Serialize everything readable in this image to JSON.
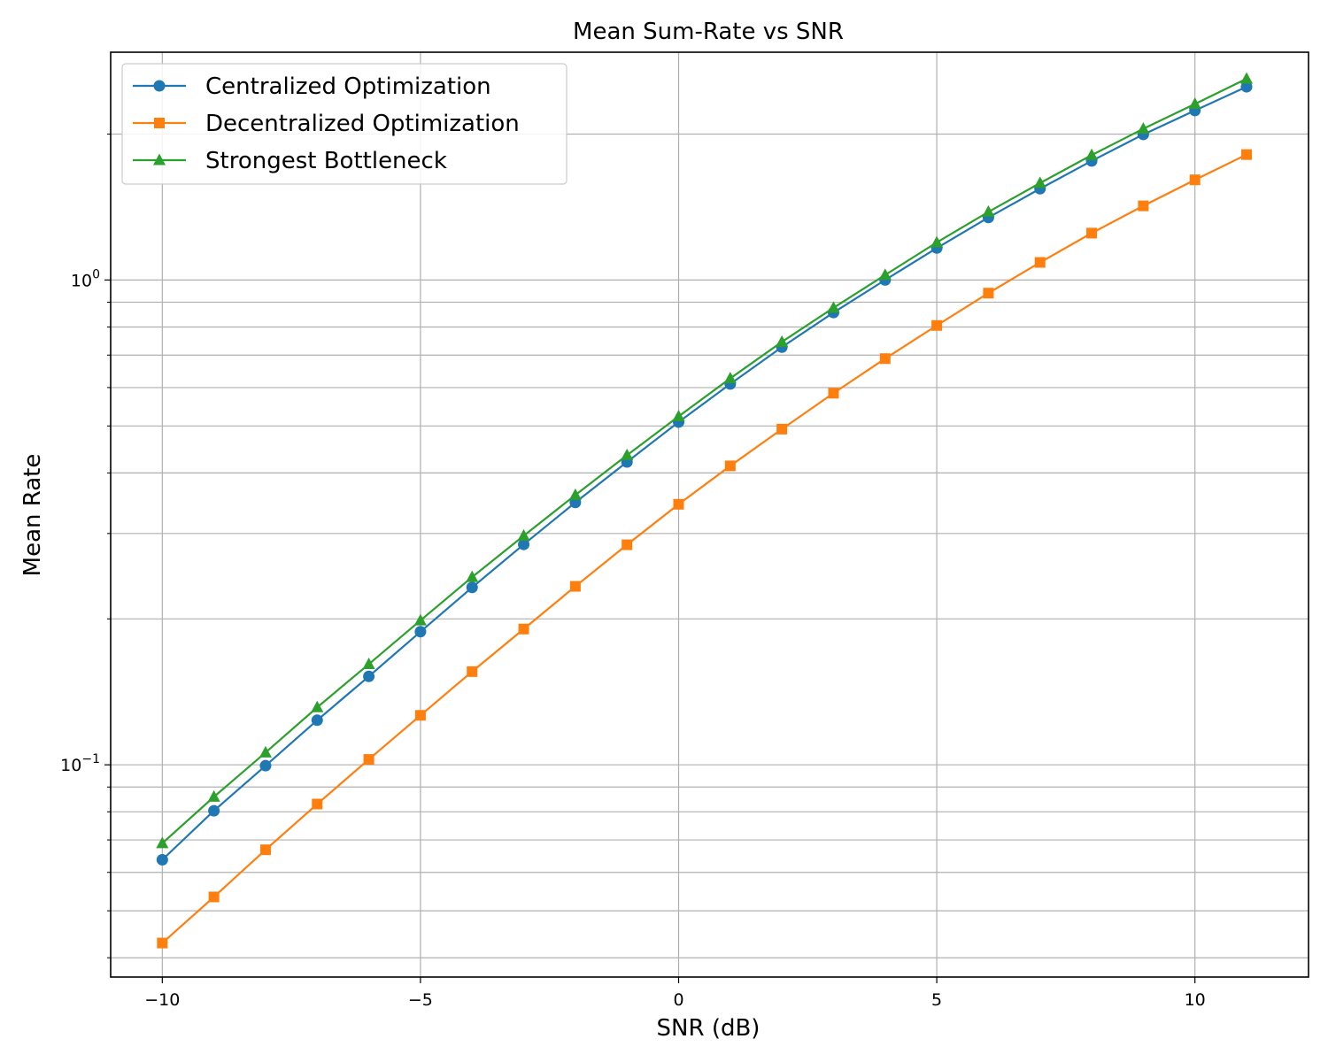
{
  "chart_data": {
    "type": "line",
    "title": "Mean Sum-Rate vs SNR",
    "xlabel": "SNR (dB)",
    "ylabel": "Mean Rate",
    "yscale": "log",
    "xlim": [
      -11.0,
      12.2
    ],
    "ylim": [
      0.0365,
      2.95
    ],
    "grid": "major and minor",
    "legend_position": "top-left",
    "x": [
      -10,
      -9,
      -8,
      -7,
      -6,
      -5,
      -4,
      -3,
      -2,
      -1,
      0,
      1,
      2,
      3,
      4,
      5,
      6,
      7,
      8,
      9,
      10,
      11
    ],
    "x_ticks": [
      {
        "value": -10,
        "label": "−10"
      },
      {
        "value": -5,
        "label": "−5"
      },
      {
        "value": 0,
        "label": "0"
      },
      {
        "value": 5,
        "label": "5"
      },
      {
        "value": 10,
        "label": "10"
      }
    ],
    "y_major_ticks": [
      {
        "value": 0.1,
        "base": "10",
        "exp": "−1"
      },
      {
        "value": 1,
        "base": "10",
        "exp": "0"
      }
    ],
    "y_minor_ticks": [
      0.04,
      0.05,
      0.06,
      0.07,
      0.08,
      0.09,
      0.2,
      0.3,
      0.4,
      0.5,
      0.6,
      0.7,
      0.8,
      0.9,
      2
    ],
    "series": [
      {
        "name": "Centralized Optimization",
        "color": "#1f77b4",
        "marker": "circle",
        "values": [
          0.0637,
          0.0804,
          0.0996,
          0.1236,
          0.1522,
          0.1882,
          0.2322,
          0.2848,
          0.3477,
          0.4214,
          0.5093,
          0.6102,
          0.727,
          0.8568,
          1.0,
          1.1639,
          1.3453,
          1.5427,
          1.7603,
          1.996,
          2.2366,
          2.5032
        ]
      },
      {
        "name": "Decentralized Optimization",
        "color": "#ff7f0e",
        "marker": "square",
        "values": [
          0.0429,
          0.0534,
          0.0668,
          0.083,
          0.1026,
          0.1265,
          0.1557,
          0.1906,
          0.2334,
          0.2844,
          0.3447,
          0.4136,
          0.4925,
          0.5842,
          0.6884,
          0.8058,
          0.9396,
          1.0871,
          1.2495,
          1.4219,
          1.6091,
          1.8142
        ]
      },
      {
        "name": "Strongest Bottleneck",
        "color": "#2ca02c",
        "marker": "triangle",
        "values": [
          0.0689,
          0.0859,
          0.106,
          0.1314,
          0.1613,
          0.1985,
          0.2439,
          0.2968,
          0.3601,
          0.435,
          0.5232,
          0.6267,
          0.7453,
          0.8761,
          1.0241,
          1.1951,
          1.382,
          1.5844,
          1.8096,
          2.0505,
          2.3073,
          2.6009
        ]
      }
    ]
  }
}
